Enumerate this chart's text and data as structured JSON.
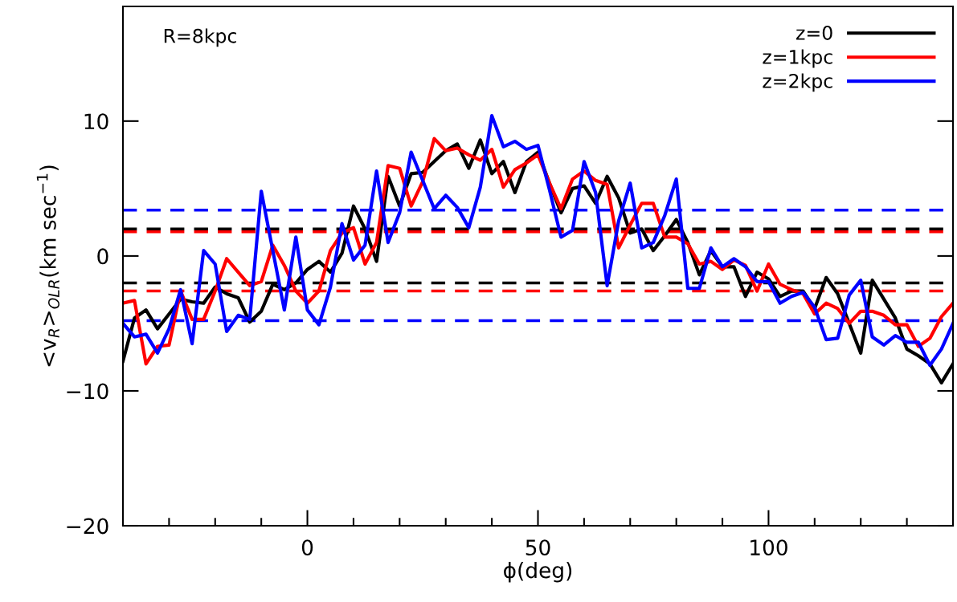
{
  "chart_data": {
    "type": "line",
    "xlabel": "ϕ(deg)",
    "ylabel": "<v$_{R}$>$_{OLR}$(km sec$^{−1}$)",
    "annotations": [
      "R=8kpc"
    ],
    "x": [
      -40,
      -37.5,
      -35,
      -32.5,
      -30,
      -27.5,
      -25,
      -22.5,
      -20,
      -17.5,
      -15,
      -12.5,
      -10,
      -7.5,
      -5,
      -2.5,
      0,
      2.5,
      5,
      7.5,
      10,
      12.5,
      15,
      17.5,
      20,
      22.5,
      25,
      27.5,
      30,
      32.5,
      35,
      37.5,
      40,
      42.5,
      45,
      47.5,
      50,
      52.5,
      55,
      57.5,
      60,
      62.5,
      65,
      67.5,
      70,
      72.5,
      75,
      77.5,
      80,
      82.5,
      85,
      87.5,
      90,
      92.5,
      95,
      97.5,
      100,
      102.5,
      105,
      107.5,
      110,
      112.5,
      115,
      117.5,
      120,
      122.5,
      125,
      127.5,
      130,
      132.5,
      135,
      137.5,
      140
    ],
    "series": [
      {
        "name": "z=0",
        "color": "#000000",
        "values": [
          -7.8,
          -4.6,
          -4.0,
          -5.4,
          -4.3,
          -3.2,
          -3.4,
          -3.5,
          -2.3,
          -2.8,
          -3.1,
          -4.9,
          -4.1,
          -2.1,
          -2.5,
          -2.0,
          -1.0,
          -0.4,
          -1.2,
          0.2,
          3.7,
          2.0,
          -0.4,
          5.9,
          3.7,
          6.1,
          6.2,
          7.0,
          7.8,
          8.3,
          6.5,
          8.6,
          6.1,
          7.0,
          4.7,
          7.0,
          7.7,
          5.4,
          3.2,
          5.0,
          5.2,
          3.9,
          5.9,
          4.3,
          1.7,
          2.0,
          0.4,
          1.5,
          2.7,
          1.0,
          -1.4,
          0.4,
          -0.8,
          -0.8,
          -3.0,
          -1.2,
          -1.7,
          -3.0,
          -2.6,
          -2.6,
          -3.9,
          -1.6,
          -2.8,
          -5.0,
          -7.2,
          -1.8,
          -3.2,
          -4.6,
          -6.9,
          -7.4,
          -8.0,
          -9.4,
          -8.0
        ]
      },
      {
        "name": "z=1kpc",
        "color": "#ff0000",
        "values": [
          -3.5,
          -3.3,
          -8.0,
          -6.7,
          -6.6,
          -2.6,
          -4.7,
          -4.7,
          -2.6,
          -0.2,
          -1.2,
          -2.2,
          -1.9,
          0.8,
          -0.7,
          -2.6,
          -3.5,
          -2.6,
          0.4,
          1.7,
          2.1,
          -0.6,
          1.0,
          6.7,
          6.5,
          3.7,
          5.5,
          8.7,
          7.8,
          8.0,
          7.5,
          7.1,
          7.9,
          5.1,
          6.4,
          6.9,
          7.5,
          5.4,
          3.5,
          5.7,
          6.3,
          5.6,
          5.3,
          0.6,
          2.3,
          3.9,
          3.9,
          1.4,
          1.4,
          0.9,
          -0.6,
          -0.4,
          -1.0,
          -0.3,
          -0.7,
          -2.6,
          -0.6,
          -2.1,
          -2.5,
          -2.8,
          -4.3,
          -3.5,
          -3.9,
          -5.0,
          -4.1,
          -4.1,
          -4.4,
          -5.1,
          -5.1,
          -6.7,
          -6.1,
          -4.5,
          -3.5
        ]
      },
      {
        "name": "z=2kpc",
        "color": "#0000ff",
        "values": [
          -5.0,
          -6.0,
          -5.8,
          -7.2,
          -5.4,
          -2.5,
          -6.5,
          0.4,
          -0.6,
          -5.6,
          -4.4,
          -4.7,
          4.8,
          0.4,
          -4.0,
          1.4,
          -4.0,
          -5.1,
          -2.3,
          2.4,
          -0.3,
          0.8,
          6.3,
          1.0,
          3.2,
          7.7,
          5.6,
          3.5,
          4.5,
          3.6,
          2.1,
          5.1,
          10.4,
          8.1,
          8.5,
          7.9,
          8.2,
          4.9,
          1.4,
          1.9,
          7.0,
          4.7,
          -2.2,
          2.6,
          5.4,
          0.6,
          1.0,
          3.0,
          5.7,
          -2.4,
          -2.4,
          0.6,
          -0.8,
          -0.2,
          -0.8,
          -1.9,
          -1.9,
          -3.5,
          -3.0,
          -2.7,
          -3.8,
          -6.2,
          -6.1,
          -2.9,
          -1.8,
          -6.0,
          -6.6,
          -5.9,
          -6.4,
          -6.4,
          -8.1,
          -6.9,
          -5.0
        ]
      }
    ],
    "ref_lines": [
      {
        "axis": "y",
        "value": 2.0,
        "color": "#000000",
        "line_style": "dashed"
      },
      {
        "axis": "y",
        "value": -2.0,
        "color": "#000000",
        "line_style": "dashed"
      },
      {
        "axis": "y",
        "value": 1.8,
        "color": "#ff0000",
        "line_style": "dashed"
      },
      {
        "axis": "y",
        "value": -2.6,
        "color": "#ff0000",
        "line_style": "dashed"
      },
      {
        "axis": "y",
        "value": 3.4,
        "color": "#0000ff",
        "line_style": "dashed"
      },
      {
        "axis": "y",
        "value": -4.8,
        "color": "#0000ff",
        "line_style": "dashed"
      }
    ],
    "xlim": [
      -40,
      140
    ],
    "xticks": [
      0,
      50,
      100
    ],
    "ylim": [
      -20,
      18.5
    ],
    "yticks": [
      {
        "value": -20,
        "label": "−20"
      },
      {
        "value": -10,
        "label": "−10"
      },
      0,
      10
    ],
    "grid": false,
    "legend": "top right",
    "marker": "none",
    "line_style": "solid"
  }
}
